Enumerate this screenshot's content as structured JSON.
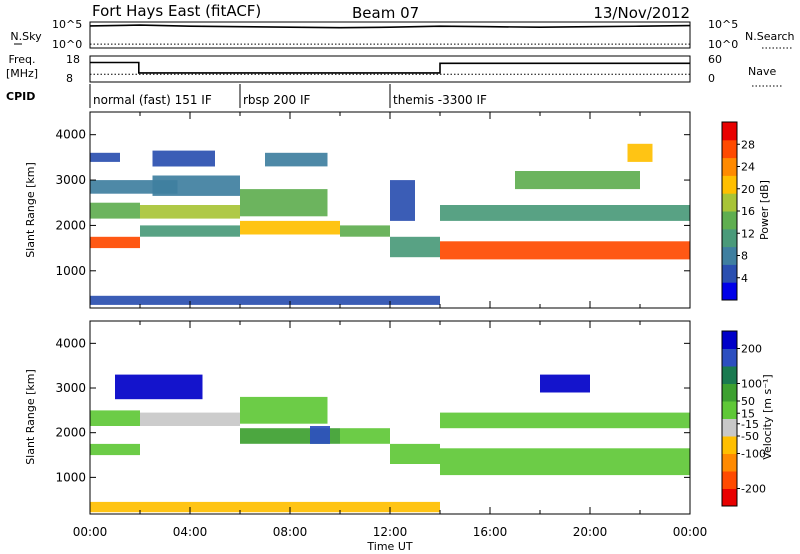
{
  "header": {
    "station": "Fort Hays East (fitACF)",
    "beam": "Beam 07",
    "date": "13/Nov/2012"
  },
  "chart_data": [
    {
      "type": "line",
      "panel": "noise",
      "left_label": "N.Sky",
      "right_label": "N.Search",
      "left_ticks": [
        "10^5",
        "10^0"
      ],
      "right_ticks": [
        "10^5",
        "10^0"
      ],
      "series": [
        {
          "name": "N.Sky",
          "style": "solid",
          "x": [
            0,
            2,
            4,
            6,
            8,
            10,
            12,
            14,
            16,
            18,
            20,
            22,
            24
          ],
          "y": [
            0.85,
            0.88,
            0.84,
            0.82,
            0.8,
            0.78,
            0.8,
            0.84,
            0.82,
            0.8,
            0.82,
            0.84,
            0.86
          ]
        },
        {
          "name": "N.Search",
          "style": "dotted",
          "x": [
            0,
            24
          ],
          "y": [
            0.15,
            0.15
          ]
        }
      ]
    },
    {
      "type": "line",
      "panel": "frequency",
      "left_label": "Freq.",
      "left_unit": "[MHz]",
      "right_label": "Nave",
      "left_ticks": [
        "18",
        "8"
      ],
      "right_ticks": [
        "60",
        "0"
      ],
      "series": [
        {
          "name": "Freq.",
          "style": "solid",
          "x": [
            0,
            1.95,
            1.95,
            14,
            14,
            24
          ],
          "y": [
            0.75,
            0.75,
            0.35,
            0.35,
            0.72,
            0.72
          ]
        },
        {
          "name": "Nave",
          "style": "dotted",
          "x": [
            0,
            24
          ],
          "y": [
            0.3,
            0.3
          ]
        }
      ]
    },
    {
      "type": "table",
      "panel": "cpid",
      "label": "CPID",
      "segments": [
        {
          "start": 0,
          "end": 6,
          "text": "normal (fast) 151 IF"
        },
        {
          "start": 6,
          "end": 12,
          "text": "rbsp 200 IF"
        },
        {
          "start": 12,
          "end": 24,
          "text": "themis -3300 IF"
        }
      ]
    },
    {
      "type": "heatmap",
      "panel": "power",
      "xlabel": "",
      "ylabel": "Slant Range [km]",
      "ylim": [
        180,
        4500
      ],
      "xlim": [
        0,
        24
      ],
      "yticks": [
        1000,
        2000,
        3000,
        4000
      ],
      "colorbar": {
        "label": "Power [dB]",
        "ticks": [
          4,
          8,
          12,
          16,
          20,
          24,
          28
        ],
        "range": [
          0,
          32
        ],
        "colors": [
          "#0000e8",
          "#2a4fb0",
          "#3f7fa0",
          "#4a9a7a",
          "#5fae50",
          "#a8c437",
          "#ffbf00",
          "#ff8a00",
          "#ff4a00",
          "#e80000"
        ]
      },
      "bands": [
        {
          "x": [
            0,
            2
          ],
          "y": [
            1500,
            1750
          ],
          "v": 26
        },
        {
          "x": [
            0,
            2
          ],
          "y": [
            2150,
            2500
          ],
          "v": 14
        },
        {
          "x": [
            0,
            3.5
          ],
          "y": [
            2700,
            3000
          ],
          "v": 8
        },
        {
          "x": [
            0,
            1.2
          ],
          "y": [
            3400,
            3600
          ],
          "v": 6
        },
        {
          "x": [
            2,
            6
          ],
          "y": [
            1750,
            2000
          ],
          "v": 12
        },
        {
          "x": [
            2,
            6
          ],
          "y": [
            2150,
            2450
          ],
          "v": 18
        },
        {
          "x": [
            2.5,
            6
          ],
          "y": [
            2650,
            3100
          ],
          "v": 9
        },
        {
          "x": [
            2.5,
            5
          ],
          "y": [
            3300,
            3650
          ],
          "v": 6
        },
        {
          "x": [
            6,
            10
          ],
          "y": [
            1800,
            2100
          ],
          "v": 20
        },
        {
          "x": [
            6,
            9.5
          ],
          "y": [
            2200,
            2800
          ],
          "v": 14
        },
        {
          "x": [
            7,
            9.5
          ],
          "y": [
            3300,
            3600
          ],
          "v": 7
        },
        {
          "x": [
            10,
            12
          ],
          "y": [
            1750,
            2000
          ],
          "v": 14
        },
        {
          "x": [
            12,
            14
          ],
          "y": [
            1300,
            1750
          ],
          "v": 10
        },
        {
          "x": [
            12,
            13
          ],
          "y": [
            2100,
            3000
          ],
          "v": 6
        },
        {
          "x": [
            14,
            24
          ],
          "y": [
            1250,
            1650
          ],
          "v": 26
        },
        {
          "x": [
            14,
            24
          ],
          "y": [
            2100,
            2450
          ],
          "v": 12
        },
        {
          "x": [
            17,
            22
          ],
          "y": [
            2800,
            3200
          ],
          "v": 14
        },
        {
          "x": [
            21.5,
            22.5
          ],
          "y": [
            3400,
            3800
          ],
          "v": 22
        },
        {
          "x": [
            0,
            14
          ],
          "y": [
            250,
            450
          ],
          "v": 6
        }
      ]
    },
    {
      "type": "heatmap",
      "panel": "velocity",
      "xlabel": "Time UT",
      "ylabel": "Slant Range [km]",
      "ylim": [
        180,
        4500
      ],
      "xlim": [
        0,
        24
      ],
      "xticks": [
        "00:00",
        "04:00",
        "08:00",
        "12:00",
        "16:00",
        "20:00",
        "00:00"
      ],
      "yticks": [
        1000,
        2000,
        3000,
        4000
      ],
      "colorbar": {
        "label": "Velocity [m s⁻¹]",
        "ticks": [
          -200,
          -100,
          -50,
          -15,
          15,
          50,
          100,
          200
        ],
        "range": [
          -250,
          250
        ],
        "colors": [
          "#e80000",
          "#ff4a00",
          "#ff8a00",
          "#ffbf00",
          "#c8c8c8",
          "#5fc837",
          "#3da030",
          "#1a7a50",
          "#2c4fc0",
          "#0000c8"
        ]
      },
      "bands": [
        {
          "x": [
            0,
            2
          ],
          "y": [
            1500,
            1750
          ],
          "v": 0
        },
        {
          "x": [
            0,
            2
          ],
          "y": [
            2150,
            2500
          ],
          "v": 0
        },
        {
          "x": [
            1,
            4.5
          ],
          "y": [
            2750,
            3300
          ],
          "v": 210
        },
        {
          "x": [
            2,
            6
          ],
          "y": [
            2150,
            2450
          ],
          "v": -30
        },
        {
          "x": [
            6,
            10
          ],
          "y": [
            1750,
            2100
          ],
          "v": 60
        },
        {
          "x": [
            6,
            9.5
          ],
          "y": [
            2200,
            2800
          ],
          "v": 0
        },
        {
          "x": [
            8.8,
            9.6
          ],
          "y": [
            1750,
            2150
          ],
          "v": 150
        },
        {
          "x": [
            10,
            12
          ],
          "y": [
            1750,
            2100
          ],
          "v": 45
        },
        {
          "x": [
            12,
            14
          ],
          "y": [
            1300,
            1750
          ],
          "v": 40
        },
        {
          "x": [
            14,
            24
          ],
          "y": [
            1050,
            1650
          ],
          "v": 0
        },
        {
          "x": [
            14,
            24
          ],
          "y": [
            2100,
            2450
          ],
          "v": 0
        },
        {
          "x": [
            18,
            20
          ],
          "y": [
            2900,
            3300
          ],
          "v": 200
        },
        {
          "x": [
            0,
            14
          ],
          "y": [
            220,
            450
          ],
          "v": -60
        }
      ]
    }
  ]
}
